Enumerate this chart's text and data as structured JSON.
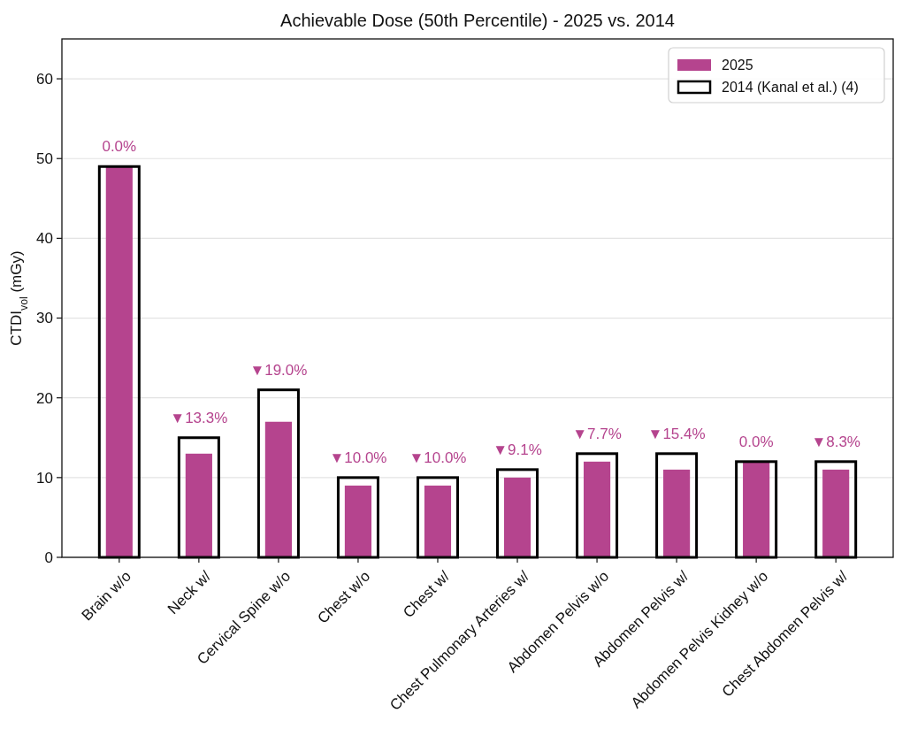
{
  "chart_data": {
    "type": "bar",
    "title": "Achievable Dose (50th Percentile) - 2025 vs. 2014",
    "ylabel": "CTDI$_{vol}$ (mGy)",
    "categories": [
      "Brain w/o",
      "Neck w/",
      "Cervical Spine w/o",
      "Chest w/o",
      "Chest w/",
      "Chest Pulmonary Arteries w/",
      "Abdomen Pelvis w/o",
      "Abdomen Pelvis w/",
      "Abdomen Pelvis Kidney w/o",
      "Chest Abdomen Pelvis w/"
    ],
    "series": [
      {
        "name": "2025",
        "color": "#b5448e",
        "values": [
          49,
          13,
          17,
          9,
          9,
          10,
          12,
          11,
          12,
          11
        ]
      },
      {
        "name": "2014 (Kanal et al.) (4)",
        "color": "#000000",
        "values": [
          49,
          15,
          21,
          10,
          10,
          11,
          13,
          13,
          12,
          12
        ]
      }
    ],
    "ylim": [
      0,
      65
    ],
    "yticks": [
      0,
      10,
      20,
      30,
      40,
      50,
      60
    ],
    "grid": "y",
    "legend": "top right",
    "annotations": [
      {
        "text": "0.0%",
        "x": "Brain w/o",
        "y": 49
      },
      {
        "text": "▼13.3%",
        "x": "Neck w/",
        "y": 15
      },
      {
        "text": "▼19.0%",
        "x": "Cervical Spine w/o",
        "y": 21
      },
      {
        "text": "▼10.0%",
        "x": "Chest w/o",
        "y": 10
      },
      {
        "text": "▼10.0%",
        "x": "Chest w/",
        "y": 10
      },
      {
        "text": "▼9.1%",
        "x": "Chest Pulmonary Arteries w/",
        "y": 11
      },
      {
        "text": "▼7.7%",
        "x": "Abdomen Pelvis w/o",
        "y": 13
      },
      {
        "text": "▼15.4%",
        "x": "Abdomen Pelvis w/",
        "y": 13
      },
      {
        "text": "0.0%",
        "x": "Abdomen Pelvis Kidney w/o",
        "y": 12
      },
      {
        "text": "▼8.3%",
        "x": "Chest Abdomen Pelvis w/",
        "y": 12
      }
    ]
  }
}
